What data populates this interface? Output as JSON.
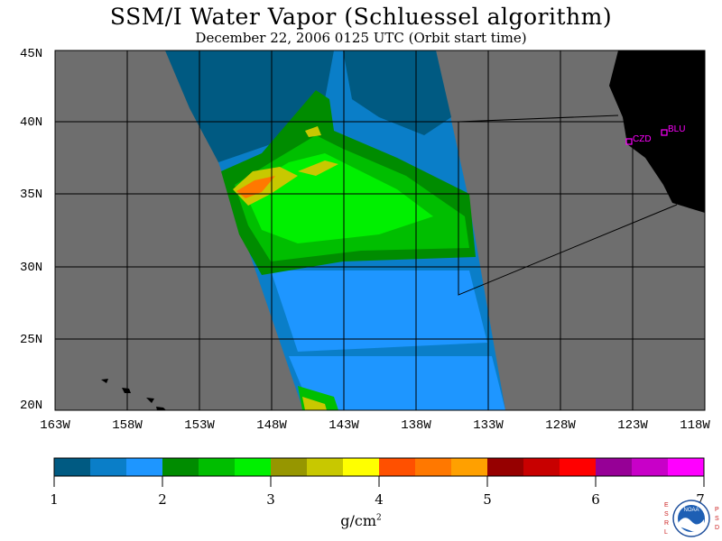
{
  "title": "SSM/I Water Vapor (Schluessel algorithm)",
  "subtitle": "December 22, 2006  0125 UTC  (Orbit start time)",
  "lat_labels": [
    "45N",
    "40N",
    "35N",
    "30N",
    "25N",
    "20N"
  ],
  "lon_labels": [
    "163W",
    "158W",
    "153W",
    "148W",
    "143W",
    "138W",
    "133W",
    "128W",
    "123W",
    "118W"
  ],
  "stations": [
    {
      "label": "CZD"
    },
    {
      "label": "BLU"
    }
  ],
  "colorbar": {
    "ticks": [
      "1",
      "2",
      "3",
      "4",
      "5",
      "6",
      "7"
    ],
    "units": "g/cm",
    "units_exp": "2",
    "colors": [
      "#005a82",
      "#0a7ec8",
      "#1e96ff",
      "#008c00",
      "#00be00",
      "#00f000",
      "#969600",
      "#c8c800",
      "#ffff00",
      "#ff5000",
      "#ff7800",
      "#ffa000",
      "#960000",
      "#c80000",
      "#ff0000",
      "#960096",
      "#c800c8",
      "#ff00ff"
    ]
  },
  "legend_colors": {
    "land": "#6e6e6e",
    "no_data_ocean": "#005a82",
    "mainland": "#000000",
    "station_marker": "#ff00ff"
  },
  "logo": {
    "left_text": "ESRL",
    "right_text": "PSD",
    "center_text": "NOAA"
  }
}
